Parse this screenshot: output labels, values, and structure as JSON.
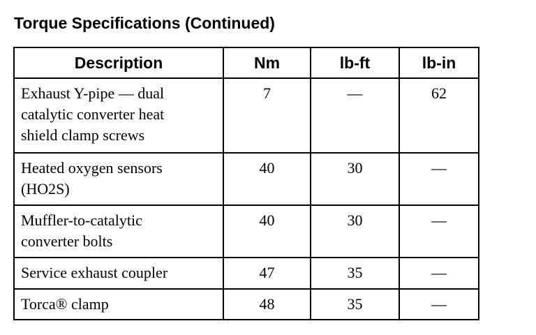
{
  "header": {
    "title": "Torque Specifications (Continued)"
  },
  "table": {
    "columns": [
      "Description",
      "Nm",
      "lb-ft",
      "lb-in"
    ],
    "rows": [
      [
        [
          "Exhaust Y-pipe — dual",
          "catalytic converter heat",
          "shield clamp screws"
        ],
        "7",
        "—",
        "62"
      ],
      [
        [
          "Heated oxygen sensors",
          "(HO2S)"
        ],
        "40",
        "30",
        "—"
      ],
      [
        [
          "Muffler-to-catalytic",
          "converter bolts"
        ],
        "40",
        "30",
        "—"
      ],
      [
        [
          "Service exhaust coupler"
        ],
        "47",
        "35",
        "—"
      ],
      [
        [
          "Torca® clamp"
        ],
        "48",
        "35",
        "—"
      ]
    ]
  }
}
